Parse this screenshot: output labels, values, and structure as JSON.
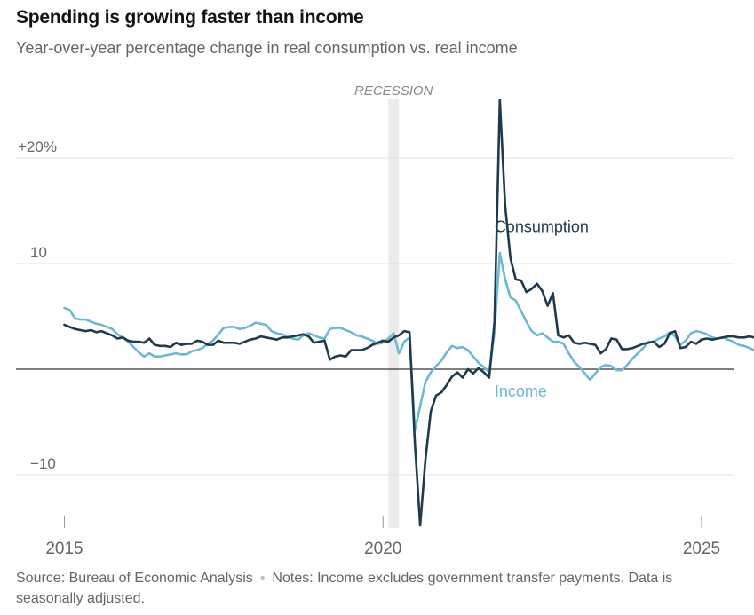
{
  "title": "Spending is growing faster than income",
  "subtitle": "Year-over-year percentage change in real consumption vs. real income",
  "source": "Source: Bureau of Economic Analysis",
  "notes": "Notes: Income excludes government transfer payments. Data is seasonally adjusted.",
  "chart_data": {
    "type": "line",
    "title": "Spending is growing faster than income",
    "subtitle": "Year-over-year percentage change in real consumption vs. real income",
    "xlabel": "",
    "ylabel": "",
    "xlim": [
      "2015-01",
      "2025-06"
    ],
    "ylim": [
      -15,
      26
    ],
    "x_ticks": [
      {
        "value": "2015-01",
        "label": "2015"
      },
      {
        "value": "2020-01",
        "label": "2020"
      },
      {
        "value": "2025-01",
        "label": "2025"
      }
    ],
    "y_ticks": [
      {
        "value": 20,
        "label": "+20%"
      },
      {
        "value": 10,
        "label": "10"
      },
      {
        "value": 0,
        "label": ""
      },
      {
        "value": -10,
        "label": "−10"
      }
    ],
    "grid": true,
    "recession": {
      "start": "2020-02",
      "end": "2020-04",
      "label": "RECESSION"
    },
    "colors": {
      "consumption": "#1e3a4c",
      "income": "#6bb9d4",
      "grid": "#e2e2e2",
      "zero": "#333333",
      "recession": "#ebebeb"
    },
    "series": [
      {
        "name": "Consumption",
        "start": "2015-01",
        "values": [
          4.2,
          4.0,
          3.8,
          3.7,
          3.6,
          3.7,
          3.5,
          3.6,
          3.4,
          3.2,
          2.9,
          3.0,
          2.7,
          2.6,
          2.6,
          2.5,
          2.9,
          2.3,
          2.2,
          2.2,
          2.1,
          2.5,
          2.3,
          2.4,
          2.4,
          2.7,
          2.6,
          2.3,
          2.3,
          2.7,
          2.5,
          2.5,
          2.5,
          2.4,
          2.6,
          2.8,
          2.9,
          3.1,
          3.0,
          2.9,
          2.8,
          3.0,
          3.0,
          3.1,
          3.2,
          3.3,
          3.1,
          2.5,
          2.6,
          2.7,
          0.9,
          1.2,
          1.3,
          1.2,
          1.8,
          1.8,
          1.8,
          2.0,
          2.3,
          2.5,
          2.7,
          2.6,
          3.0,
          3.2,
          3.6,
          3.5,
          -7.0,
          -14.8,
          -8.5,
          -4.0,
          -2.5,
          -2.2,
          -1.5,
          -0.7,
          -0.3,
          -0.8,
          0.0,
          -0.4,
          0.1,
          -0.3,
          -0.8,
          4.5,
          25.5,
          15.5,
          10.5,
          8.5,
          8.4,
          7.3,
          7.6,
          8.1,
          7.4,
          6.0,
          7.2,
          3.2,
          3.0,
          3.2,
          2.5,
          2.4,
          2.5,
          2.4,
          2.3,
          1.5,
          1.9,
          2.9,
          2.8,
          1.9,
          1.9,
          2.0,
          2.2,
          2.4,
          2.5,
          2.6,
          2.1,
          2.4,
          3.4,
          3.6,
          2.0,
          2.1,
          2.6,
          2.4,
          2.8,
          2.9,
          2.8,
          2.9,
          3.0,
          3.1,
          3.1,
          3.0,
          3.0,
          3.1,
          3.0,
          3.3,
          3.4
        ]
      },
      {
        "name": "Income",
        "start": "2015-01",
        "values": [
          5.8,
          5.6,
          4.8,
          4.7,
          4.7,
          4.5,
          4.3,
          4.2,
          4.0,
          3.8,
          3.3,
          3.0,
          2.6,
          2.1,
          1.6,
          1.2,
          1.5,
          1.2,
          1.2,
          1.3,
          1.4,
          1.5,
          1.4,
          1.4,
          1.7,
          1.8,
          2.0,
          2.4,
          2.7,
          3.3,
          3.9,
          4.0,
          4.0,
          3.8,
          3.9,
          4.1,
          4.4,
          4.3,
          4.2,
          3.6,
          3.4,
          3.3,
          3.1,
          2.9,
          2.8,
          3.2,
          3.4,
          3.2,
          3.0,
          2.9,
          3.8,
          3.9,
          3.9,
          3.7,
          3.5,
          3.2,
          3.1,
          2.9,
          2.7,
          2.4,
          2.5,
          2.9,
          3.4,
          1.5,
          2.6,
          3.0,
          -5.8,
          -3.5,
          -1.2,
          -0.3,
          0.3,
          0.8,
          1.6,
          2.2,
          2.0,
          2.1,
          1.8,
          1.2,
          0.6,
          0.2,
          -0.3,
          3.5,
          11.0,
          8.5,
          6.8,
          6.5,
          5.5,
          4.5,
          3.6,
          3.2,
          3.4,
          3.0,
          2.6,
          2.6,
          2.4,
          1.5,
          0.7,
          0.2,
          -0.4,
          -1.0,
          -0.4,
          0.2,
          0.4,
          0.3,
          -0.1,
          -0.1,
          0.4,
          1.0,
          1.5,
          2.0,
          2.6,
          2.6,
          2.9,
          3.1,
          3.5,
          3.1,
          2.3,
          2.7,
          3.4,
          3.6,
          3.5,
          3.3,
          3.0,
          2.9,
          3.0,
          2.8,
          2.6,
          2.3,
          2.2,
          2.0,
          1.8,
          1.6,
          1.5,
          1.2,
          1.0,
          1.0,
          1.6
        ]
      }
    ],
    "annotations": [
      {
        "text": "Consumption",
        "x": "2021-10",
        "y": 13.5
      },
      {
        "text": "Income",
        "x": "2021-10",
        "y": -2.1
      }
    ]
  }
}
